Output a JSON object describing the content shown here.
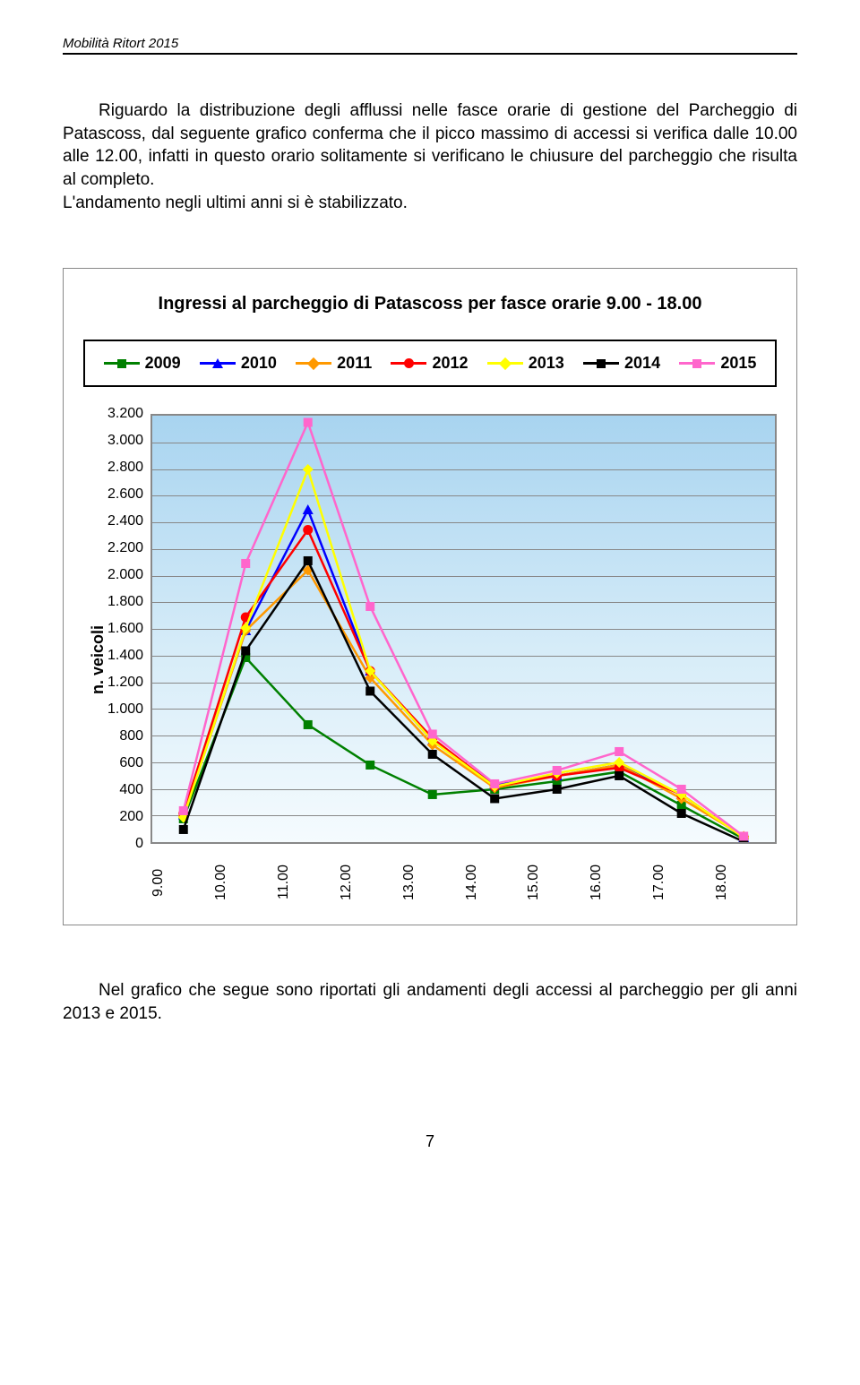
{
  "header": "Mobilità Ritort 2015",
  "paragraph1": "Riguardo la distribuzione degli afflussi nelle fasce orarie di gestione del Parcheggio di Patascoss, dal seguente grafico conferma che il picco massimo di accessi si verifica dalle 10.00 alle 12.00, infatti in questo orario solitamente si verificano le chiusure del parcheggio che risulta al completo.",
  "paragraph2": "L'andamento negli ultimi anni si è stabilizzato.",
  "chart": {
    "title": "Ingressi al parcheggio di Patascoss per fasce orarie 9.00 - 18.00",
    "ylabel": "n. veicoli",
    "x_categories": [
      "9.00",
      "10.00",
      "11.00",
      "12.00",
      "13.00",
      "14.00",
      "15.00",
      "16.00",
      "17.00",
      "18.00"
    ],
    "y_ticks": [
      "3.200",
      "3.000",
      "2.800",
      "2.600",
      "2.400",
      "2.200",
      "2.000",
      "1.800",
      "1.600",
      "1.400",
      "1.200",
      "1.000",
      "800",
      "600",
      "400",
      "200",
      "0"
    ],
    "y_max": 3200,
    "y_step": 200,
    "series": [
      {
        "name": "2009",
        "color": "#008000",
        "marker": "sq",
        "values": [
          200,
          1400,
          900,
          600,
          380,
          420,
          480,
          550,
          300,
          50
        ]
      },
      {
        "name": "2010",
        "color": "#0000ff",
        "marker": "tri",
        "values": [
          230,
          1600,
          2500,
          1300,
          780,
          450,
          520,
          600,
          380,
          60
        ]
      },
      {
        "name": "2011",
        "color": "#ff9900",
        "marker": "diam",
        "values": [
          220,
          1600,
          2050,
          1250,
          750,
          430,
          520,
          600,
          350,
          70
        ]
      },
      {
        "name": "2012",
        "color": "#ff0000",
        "marker": "circ",
        "values": [
          240,
          1700,
          2350,
          1300,
          800,
          440,
          520,
          580,
          380,
          60
        ]
      },
      {
        "name": "2013",
        "color": "#ffff00",
        "marker": "diam",
        "values": [
          210,
          1620,
          2800,
          1300,
          780,
          440,
          540,
          620,
          380,
          60
        ]
      },
      {
        "name": "2014",
        "color": "#000000",
        "marker": "sq",
        "values": [
          120,
          1450,
          2120,
          1150,
          680,
          350,
          420,
          520,
          240,
          30
        ]
      },
      {
        "name": "2015",
        "color": "#ff66cc",
        "marker": "sq",
        "values": [
          260,
          2100,
          3150,
          1780,
          830,
          460,
          560,
          700,
          420,
          70
        ]
      }
    ]
  },
  "footer_text": "Nel grafico che segue sono riportati gli andamenti degli accessi al parcheggio per gli anni 2013 e 2015.",
  "page_number": "7"
}
